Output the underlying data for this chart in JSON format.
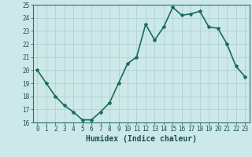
{
  "x": [
    0,
    1,
    2,
    3,
    4,
    5,
    6,
    7,
    8,
    9,
    10,
    11,
    12,
    13,
    14,
    15,
    16,
    17,
    18,
    19,
    20,
    21,
    22,
    23
  ],
  "y": [
    20.0,
    19.0,
    18.0,
    17.3,
    16.8,
    16.2,
    16.2,
    16.8,
    17.5,
    19.0,
    20.5,
    21.0,
    23.5,
    22.3,
    23.3,
    24.8,
    24.2,
    24.3,
    24.5,
    23.3,
    23.2,
    22.0,
    20.3,
    19.5
  ],
  "xlabel": "Humidex (Indice chaleur)",
  "ylabel": "",
  "ylim": [
    16,
    25
  ],
  "xlim": [
    -0.5,
    23.5
  ],
  "yticks": [
    16,
    17,
    18,
    19,
    20,
    21,
    22,
    23,
    24,
    25
  ],
  "xticks": [
    0,
    1,
    2,
    3,
    4,
    5,
    6,
    7,
    8,
    9,
    10,
    11,
    12,
    13,
    14,
    15,
    16,
    17,
    18,
    19,
    20,
    21,
    22,
    23
  ],
  "line_color": "#1a6b5a",
  "marker": "*",
  "marker_size": 3,
  "bg_color": "#cce8e8",
  "grid_color": "#aacfcf",
  "axis_color": "#2c6e6e",
  "tick_color": "#1a5050",
  "label_color": "#1a5050",
  "font_size": 5.5,
  "xlabel_fontsize": 7,
  "line_width": 1.2
}
